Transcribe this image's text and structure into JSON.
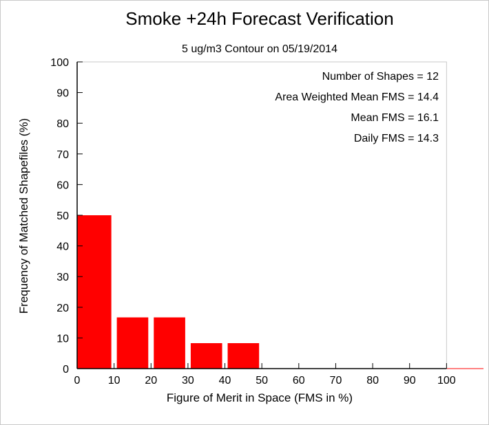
{
  "chart_data": {
    "type": "bar",
    "title": "Smoke +24h Forecast Verification",
    "subtitle": "5 ug/m3 Contour on 05/19/2014",
    "xlabel": "Figure of Merit in Space (FMS in %)",
    "ylabel": "Frequency of Matched Shapefiles (%)",
    "bins": [
      [
        0,
        10
      ],
      [
        10,
        20
      ],
      [
        20,
        30
      ],
      [
        30,
        40
      ],
      [
        40,
        50
      ],
      [
        50,
        60
      ],
      [
        60,
        70
      ],
      [
        70,
        80
      ],
      [
        80,
        90
      ],
      [
        90,
        100
      ]
    ],
    "values": [
      50,
      16.7,
      16.7,
      8.3,
      8.3,
      0,
      0,
      0,
      0,
      0
    ],
    "xlim": [
      0,
      110
    ],
    "ylim": [
      0,
      100
    ],
    "xticks": [
      0,
      10,
      20,
      30,
      40,
      50,
      60,
      70,
      80,
      90,
      100
    ],
    "yticks": [
      0,
      10,
      20,
      30,
      40,
      50,
      60,
      70,
      80,
      90,
      100
    ],
    "bar_color": "#ff0000",
    "grid": false,
    "annotations": [
      "Number of Shapes = 12",
      "Area Weighted Mean FMS = 14.4",
      "Mean FMS = 16.1",
      "Daily FMS = 14.3"
    ]
  }
}
